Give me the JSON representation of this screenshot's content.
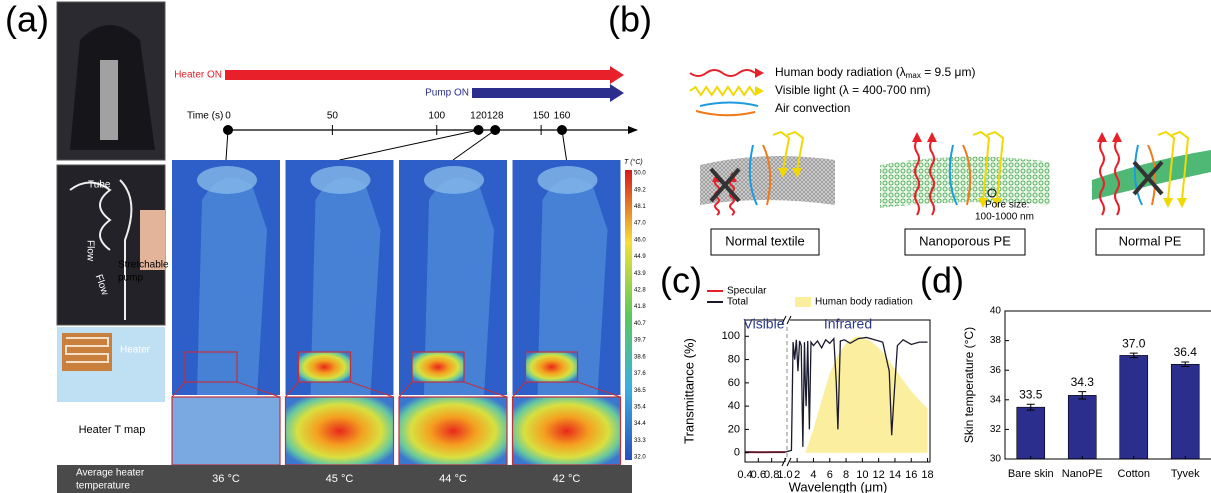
{
  "panel_labels": [
    "(a)",
    "(b)",
    "(c)",
    "(d)"
  ],
  "panel_a": {
    "heater_on": "Heater ON",
    "pump_on": "Pump ON",
    "time_label": "Time (s)",
    "time_ticks": [
      0,
      50,
      100,
      120,
      128,
      150,
      160
    ],
    "photo_labels": {
      "tube": "Tube",
      "flow": [
        "Flow",
        "Flow"
      ],
      "pump": [
        "Stretchable",
        "pump"
      ],
      "heater": "Heater"
    },
    "heater_map_label": "Heater T map",
    "colorbar_title": "T (°C)",
    "colorbar_labels": [
      "50.0",
      "49.2",
      "48.1",
      "47.0",
      "46.0",
      "44.9",
      "43.9",
      "42.8",
      "41.8",
      "40.7",
      "39.7",
      "38.6",
      "37.6",
      "36.5",
      "35.4",
      "34.4",
      "33.3",
      "32.0"
    ],
    "avg_label": [
      "Average heater",
      "temperature"
    ],
    "avg_temps": [
      "36 °C",
      "45 °C",
      "44 °C",
      "42 °C"
    ]
  },
  "panel_b": {
    "legend": [
      [
        "Human body radiation (λ",
        "max",
        " = 9.5 μm)"
      ],
      [
        "Visible light (λ = 400-700 nm)"
      ],
      [
        "Air convection"
      ]
    ],
    "pore_size": [
      "Pore size:",
      "100-1000 nm"
    ],
    "materials": [
      "Normal textile",
      "Nanoporous PE",
      "Normal PE"
    ]
  },
  "chart_data": [
    {
      "type": "line",
      "xlabel": "Wavelength (μm)",
      "ylabel": "Transmittance (%)",
      "annotations": [
        "Visible",
        "Infrared"
      ],
      "xlim": [
        0.4,
        18.3
      ],
      "xbreak": 1.0,
      "xticks": [
        0.4,
        0.6,
        0.8,
        {
          "value": 1.0,
          "label": "1.0"
        },
        2,
        4,
        6,
        8,
        10,
        12,
        14,
        16,
        18
      ],
      "ylim": [
        -8,
        114
      ],
      "yticks": [
        0,
        20,
        40,
        60,
        80,
        100
      ],
      "series": [
        {
          "name": "Specular",
          "color": "#e8202a",
          "x": [
            0.4,
            0.5,
            0.6,
            0.7,
            0.8,
            0.9,
            1.0
          ],
          "values": [
            0.5,
            0.5,
            0.4,
            0.4,
            0.5,
            0.5,
            0.5
          ]
        },
        {
          "name": "Total",
          "color": "#1a1a2e",
          "x": [
            0.4,
            0.7,
            1.0,
            1.3,
            1.5,
            1.7,
            1.9,
            2.1,
            2.3,
            2.5,
            2.7,
            2.9,
            3.0,
            3.1,
            3.3,
            3.5,
            3.7,
            4.0,
            4.5,
            5.0,
            5.5,
            6.0,
            6.5,
            6.8,
            7.0,
            7.3,
            7.8,
            8.5,
            9.5,
            10.5,
            11.5,
            12.5,
            13.3,
            13.6,
            13.9,
            14.3,
            15,
            16,
            17,
            18
          ],
          "values": [
            0.5,
            0.5,
            0.5,
            2,
            95,
            80,
            97,
            70,
            96,
            92,
            5,
            95,
            60,
            40,
            96,
            20,
            95,
            92,
            96,
            90,
            97,
            94,
            98,
            60,
            20,
            96,
            97,
            94,
            98,
            99,
            97,
            95,
            70,
            15,
            50,
            92,
            97,
            93,
            95,
            95
          ]
        },
        {
          "name": "Human body radiation",
          "color": "#fbee9e",
          "area": true,
          "x": [
            3,
            4,
            5,
            6,
            7,
            8,
            9,
            9.5,
            10,
            11,
            12,
            13,
            14,
            15,
            16,
            17,
            18
          ],
          "values": [
            0,
            20,
            45,
            68,
            84,
            94,
            99,
            100,
            99,
            96,
            90,
            82,
            72,
            62,
            53,
            45,
            38
          ]
        }
      ]
    },
    {
      "type": "bar",
      "ylabel": "Skin temperature (°C)",
      "categories": [
        "Bare skin",
        "NanoPE",
        "Cotton",
        "Tyvek"
      ],
      "values": [
        33.5,
        34.3,
        37.0,
        36.4
      ],
      "value_labels": [
        "33.5",
        "34.3",
        "37.0",
        "36.4"
      ],
      "errors": [
        0.2,
        0.25,
        0.15,
        0.15
      ],
      "color": "#2b2e8c",
      "ylim": [
        30,
        40
      ],
      "yticks": [
        30,
        32,
        34,
        36,
        38,
        40
      ]
    }
  ]
}
